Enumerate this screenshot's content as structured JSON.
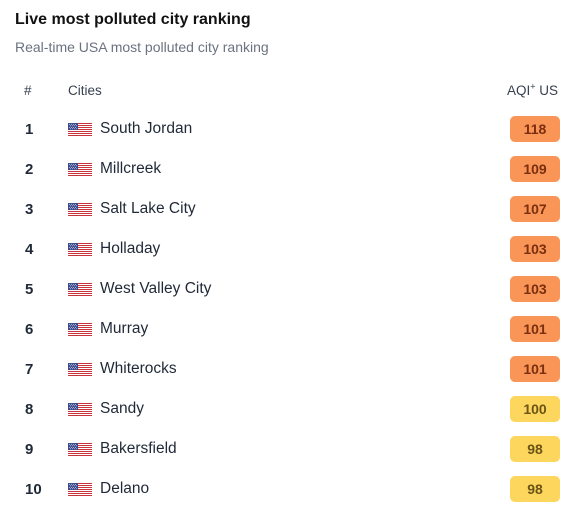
{
  "title": "Live most polluted city ranking",
  "subtitle": "Real-time USA most polluted city ranking",
  "columns": {
    "rank": "#",
    "city": "Cities",
    "aqi": "AQI",
    "aqi_sup": "+",
    "aqi_unit": " US"
  },
  "colors": {
    "orange": "#f99556",
    "yellow": "#fdd65d"
  },
  "rows": [
    {
      "rank": "1",
      "city": "South Jordan",
      "aqi": "118",
      "level": "orange"
    },
    {
      "rank": "2",
      "city": "Millcreek",
      "aqi": "109",
      "level": "orange"
    },
    {
      "rank": "3",
      "city": "Salt Lake City",
      "aqi": "107",
      "level": "orange"
    },
    {
      "rank": "4",
      "city": "Holladay",
      "aqi": "103",
      "level": "orange"
    },
    {
      "rank": "5",
      "city": "West Valley City",
      "aqi": "103",
      "level": "orange"
    },
    {
      "rank": "6",
      "city": "Murray",
      "aqi": "101",
      "level": "orange"
    },
    {
      "rank": "7",
      "city": "Whiterocks",
      "aqi": "101",
      "level": "orange"
    },
    {
      "rank": "8",
      "city": "Sandy",
      "aqi": "100",
      "level": "yellow"
    },
    {
      "rank": "9",
      "city": "Bakersfield",
      "aqi": "98",
      "level": "yellow"
    },
    {
      "rank": "10",
      "city": "Delano",
      "aqi": "98",
      "level": "yellow"
    }
  ]
}
